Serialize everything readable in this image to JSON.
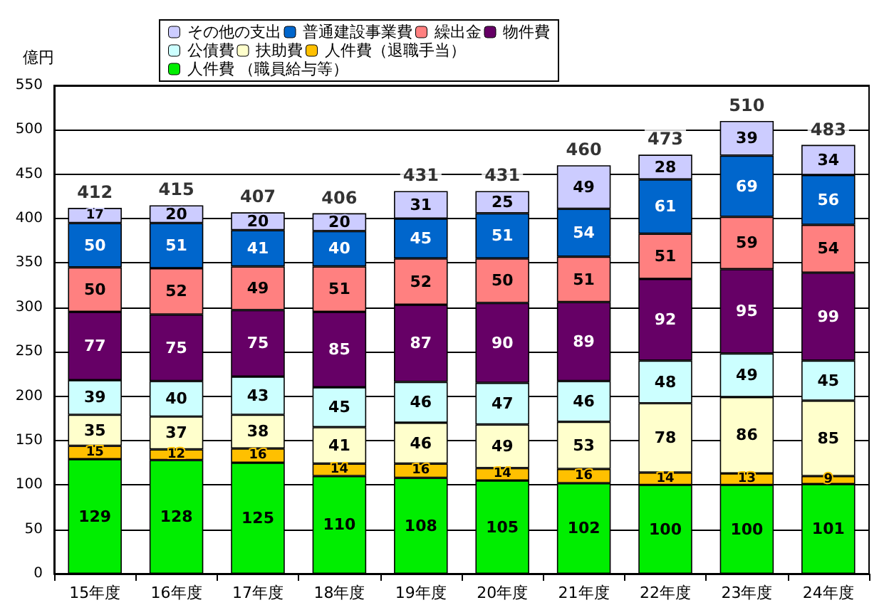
{
  "chart_data": {
    "type": "bar",
    "stacked": true,
    "ylabel": "億円",
    "categories": [
      "15年度",
      "16年度",
      "17年度",
      "18年度",
      "19年度",
      "20年度",
      "21年度",
      "22年度",
      "23年度",
      "24年度"
    ],
    "series": [
      {
        "name": "人件費 （職員給与等）",
        "color": "#00ee00",
        "values": [
          129,
          128,
          125,
          110,
          108,
          105,
          102,
          100,
          100,
          101
        ]
      },
      {
        "name": "人件費（退職手当）",
        "color": "#ffc000",
        "values": [
          15,
          12,
          16,
          14,
          16,
          14,
          16,
          14,
          13,
          9
        ]
      },
      {
        "name": "扶助費",
        "color": "#ffffcc",
        "values": [
          35,
          37,
          38,
          41,
          46,
          49,
          53,
          78,
          86,
          85
        ]
      },
      {
        "name": "公債費",
        "color": "#ccffff",
        "values": [
          39,
          40,
          43,
          45,
          46,
          47,
          46,
          48,
          49,
          45
        ]
      },
      {
        "name": "物件費",
        "color": "#660066",
        "values": [
          77,
          75,
          75,
          85,
          87,
          90,
          89,
          92,
          95,
          99
        ]
      },
      {
        "name": "繰出金",
        "color": "#ff8080",
        "values": [
          50,
          52,
          49,
          51,
          52,
          50,
          51,
          51,
          59,
          54
        ]
      },
      {
        "name": "普通建設事業費",
        "color": "#0066cc",
        "values": [
          50,
          51,
          41,
          40,
          45,
          51,
          54,
          61,
          69,
          56
        ]
      },
      {
        "name": "その他の支出",
        "color": "#ccccff",
        "values": [
          17,
          20,
          20,
          20,
          31,
          25,
          49,
          28,
          39,
          34
        ]
      }
    ],
    "totals": [
      "412",
      "415",
      "407",
      "406",
      "431",
      "431",
      "460",
      "473",
      "510",
      "483"
    ],
    "ylim": [
      0,
      550
    ],
    "yticks": [
      0,
      50,
      100,
      150,
      200,
      250,
      300,
      350,
      400,
      450,
      500,
      550
    ],
    "grid": "y",
    "data_labels": true,
    "legend": "top left"
  }
}
